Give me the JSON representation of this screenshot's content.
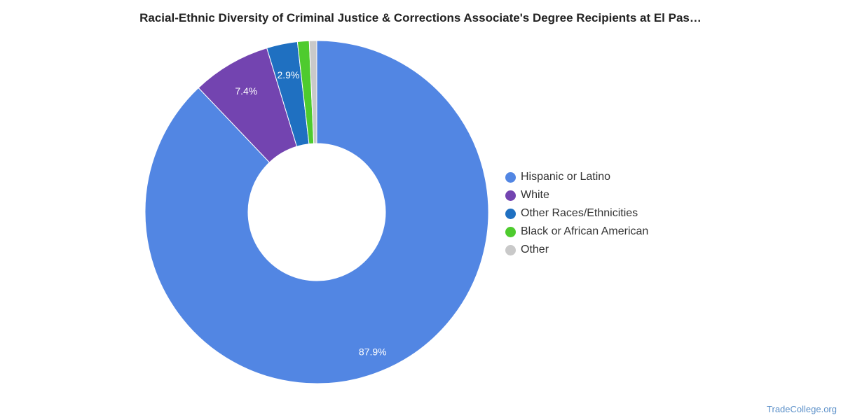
{
  "chart_data": {
    "type": "pie",
    "subtype": "donut",
    "title": "Racial-Ethnic Diversity of Criminal Justice & Corrections Associate's Degree Recipients at El Pas…",
    "series": [
      {
        "name": "Hispanic or Latino",
        "value": 87.9,
        "label": "87.9%",
        "color": "#5286E3"
      },
      {
        "name": "White",
        "value": 7.4,
        "label": "7.4%",
        "color": "#7344B0"
      },
      {
        "name": "Other Races/Ethnicities",
        "value": 2.9,
        "label": "2.9%",
        "color": "#1F70C1"
      },
      {
        "name": "Black or African American",
        "value": 1.1,
        "label": "",
        "color": "#4ECB2E"
      },
      {
        "name": "Other",
        "value": 0.7,
        "label": "",
        "color": "#C9C9C9"
      }
    ],
    "legend_position": "right"
  },
  "source": "TradeCollege.org"
}
